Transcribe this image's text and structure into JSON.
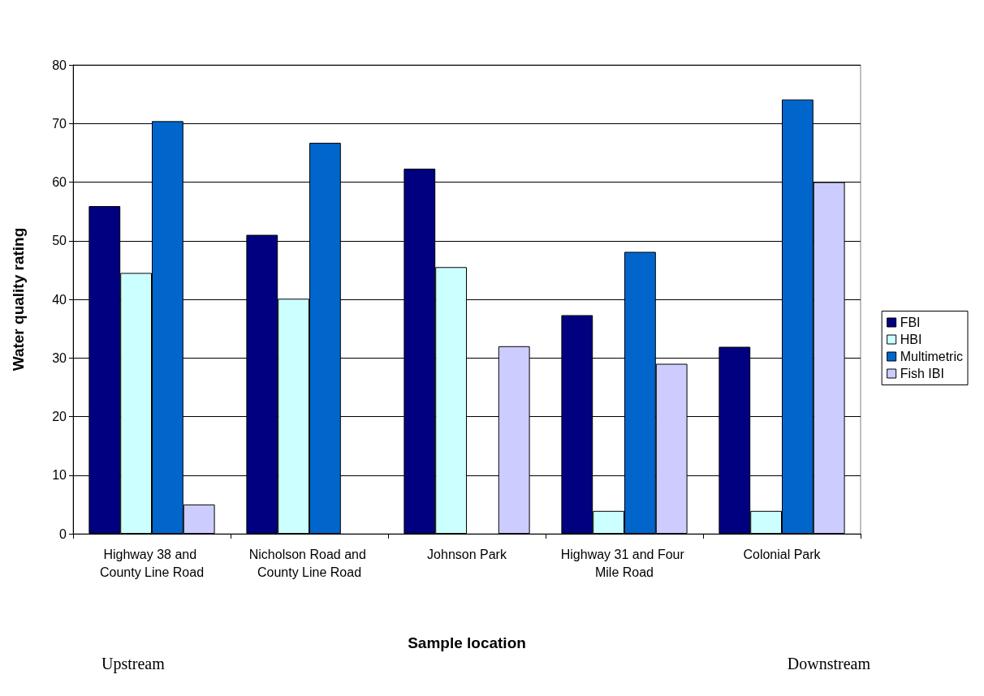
{
  "chart_data": {
    "type": "bar",
    "xlabel": "Sample location",
    "ylabel": "Water quality rating",
    "categories": [
      "Highway 38 and County Line Road",
      "Nicholson Road and County Line Road",
      "Johnson Park",
      "Highway 31 and Four Mile Road",
      "Colonial Park"
    ],
    "series": [
      {
        "name": "FBI",
        "color": "#000080",
        "values": [
          55.9,
          51,
          62.3,
          37.3,
          31.9
        ]
      },
      {
        "name": "HBI",
        "color": "#ccffff",
        "values": [
          44.5,
          40.1,
          45.5,
          3.9,
          3.9
        ]
      },
      {
        "name": "Multimetric",
        "color": "#0066cc",
        "values": [
          70.4,
          66.7,
          null,
          48.1,
          74.1
        ]
      },
      {
        "name": "Fish IBI",
        "color": "#ccccff",
        "values": [
          5,
          null,
          32,
          29,
          60
        ]
      }
    ],
    "ylim": [
      0,
      80
    ],
    "yticks": [
      0,
      10,
      20,
      30,
      40,
      50,
      60,
      70,
      80
    ],
    "grid": "y",
    "legend": "right",
    "annotations": [
      "Upstream",
      "Downstream"
    ]
  }
}
